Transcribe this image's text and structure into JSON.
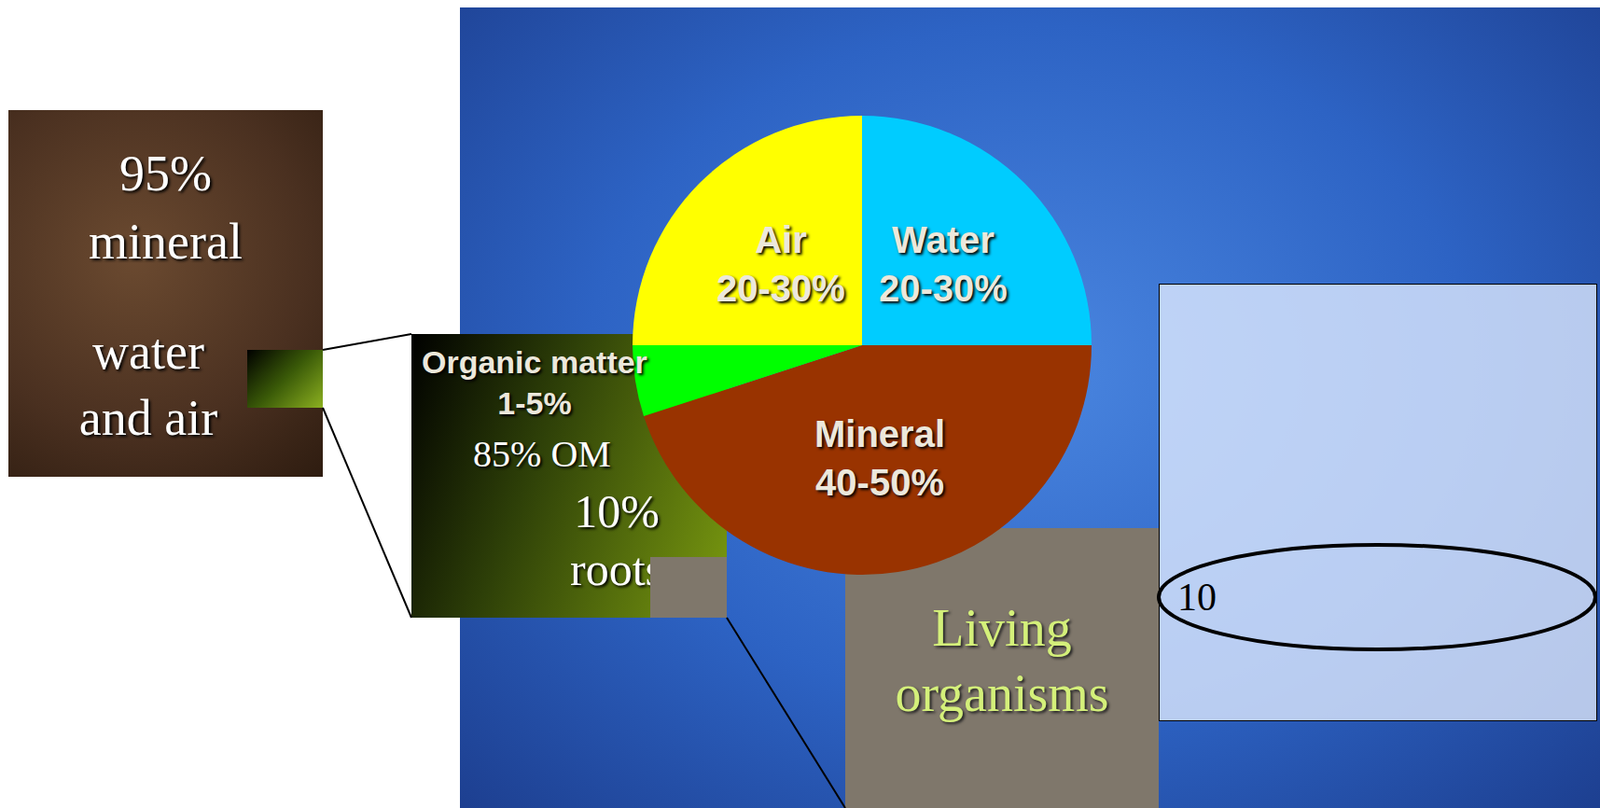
{
  "chart_data": {
    "type": "pie",
    "categories": [
      "Water",
      "Mineral",
      "Organic matter",
      "Air"
    ],
    "values": [
      25,
      45,
      5,
      25
    ],
    "value_labels": [
      "20-30%",
      "40-50%",
      "1-5%",
      "20-30%"
    ],
    "colors": [
      "#00ccff",
      "#993300",
      "#00ff00",
      "#ffff00"
    ],
    "data_labels": true
  },
  "diagram": {
    "soil_box": {
      "lines": [
        "95%",
        "mineral",
        "water",
        "and air"
      ]
    },
    "organic_box": {
      "lines": [
        "85% OM",
        "10%",
        "roots"
      ]
    },
    "organisms_box": {
      "label": "Living organisms"
    },
    "table": {
      "circled": "10"
    }
  }
}
